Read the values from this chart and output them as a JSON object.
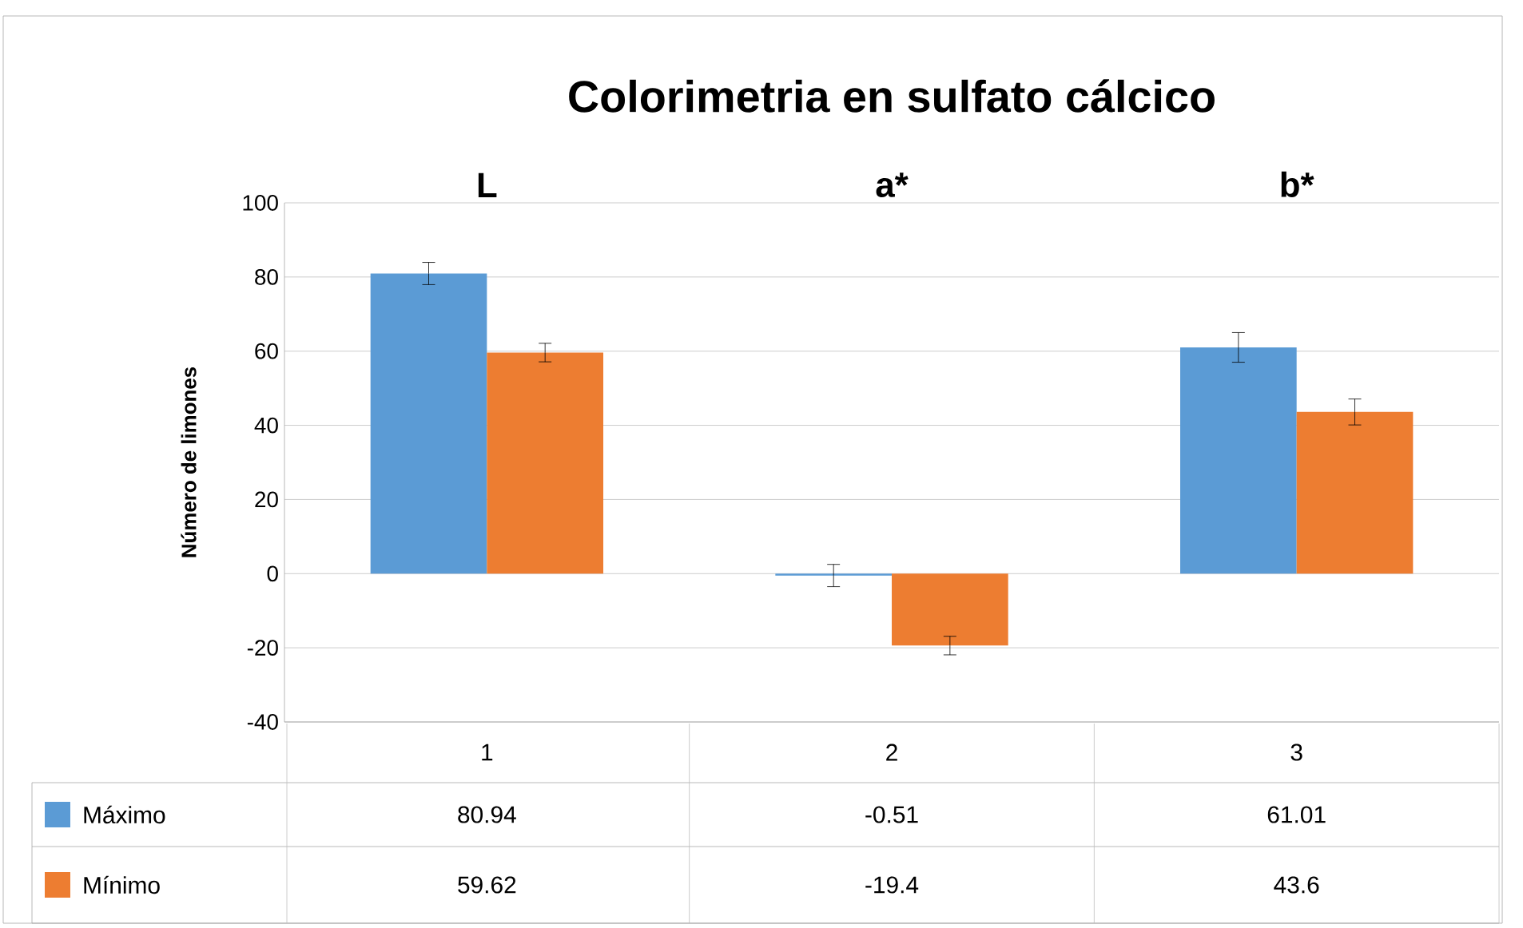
{
  "chart_data": {
    "type": "bar",
    "title": "Colorimetria en sulfato cálcico",
    "ylabel": "Número de limones",
    "categories": [
      "1",
      "2",
      "3"
    ],
    "series": [
      {
        "name": "Máximo",
        "color": "#5b9bd5",
        "values": [
          80.94,
          -0.51,
          61.01
        ],
        "errors": [
          3,
          3,
          4
        ]
      },
      {
        "name": "Mínimo",
        "color": "#ed7d31",
        "values": [
          59.62,
          -19.4,
          43.6
        ],
        "errors": [
          2.5,
          2.5,
          3.5
        ]
      }
    ],
    "annotations": [
      "L",
      "a*",
      "b*"
    ],
    "ylim": [
      -40,
      100
    ],
    "yticks": [
      -40,
      -20,
      0,
      20,
      40,
      60,
      80,
      100
    ],
    "grid": "y",
    "legend": "bottom",
    "data_labels": true
  }
}
